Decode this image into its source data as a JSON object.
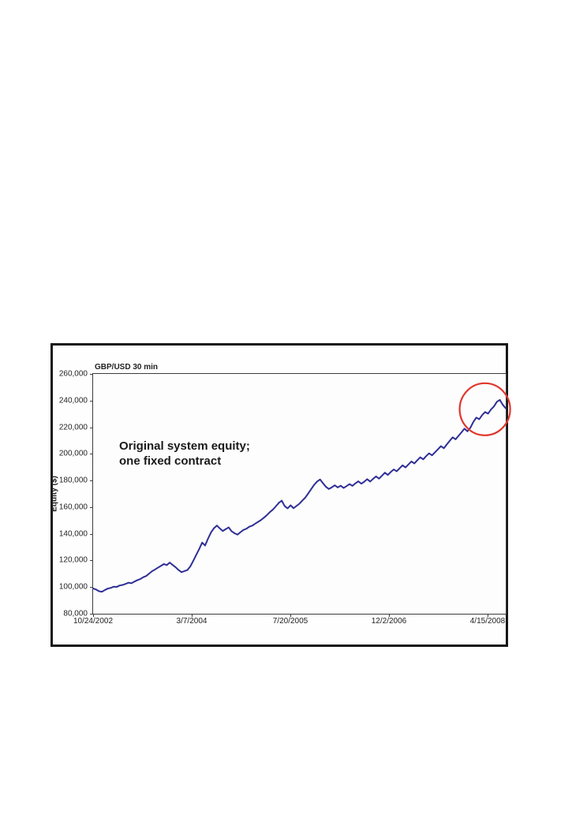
{
  "page": {
    "background": "#ffffff"
  },
  "chart_data": {
    "type": "line",
    "title": "GBP/USD 30 min",
    "xlabel": "",
    "ylabel": "Equity ($)",
    "ylim": [
      80000,
      260000
    ],
    "y_tick_step": 20000,
    "grid": false,
    "legend_position": "none",
    "y_tick_labels": [
      "260,000",
      "240,000",
      "220,000",
      "200,000",
      "180,000",
      "160,000",
      "140,000",
      "120,000",
      "100,000",
      "80,000"
    ],
    "x_tick_labels": [
      "10/24/2002",
      "3/7/2004",
      "7/20/2005",
      "12/2/2006",
      "4/15/2008"
    ],
    "annotation": {
      "line1": "Original system equity;",
      "line2": "one fixed contract"
    },
    "series": [
      {
        "name": "Original system equity, one fixed contract",
        "color": "#2e2e96",
        "values": [
          99000,
          98200,
          96900,
          96500,
          97800,
          98900,
          99400,
          100300,
          100100,
          101200,
          101600,
          102400,
          103300,
          102900,
          104100,
          105200,
          106000,
          107400,
          108300,
          110100,
          111900,
          113200,
          114600,
          115900,
          117300,
          116500,
          118400,
          116600,
          114900,
          112800,
          111200,
          112000,
          112800,
          115600,
          119800,
          124200,
          128600,
          133400,
          131200,
          136400,
          141000,
          144200,
          146200,
          144000,
          142100,
          143500,
          144800,
          141900,
          140400,
          139400,
          141200,
          142900,
          143800,
          145300,
          146100,
          147600,
          149000,
          150400,
          152200,
          154100,
          156300,
          158200,
          160600,
          163200,
          164900,
          160800,
          159100,
          161400,
          159200,
          160900,
          162600,
          165000,
          167200,
          170300,
          173600,
          176800,
          179200,
          180800,
          177900,
          175300,
          173600,
          174900,
          176400,
          174800,
          176100,
          174400,
          175800,
          177300,
          176000,
          177900,
          179400,
          177600,
          179100,
          181000,
          179200,
          181300,
          183100,
          181400,
          183600,
          185900,
          184200,
          186400,
          188300,
          186900,
          189200,
          191400,
          189800,
          192100,
          194300,
          192800,
          195200,
          197400,
          195900,
          198300,
          200400,
          198900,
          201200,
          203400,
          205800,
          204200,
          207100,
          209800,
          212400,
          210900,
          213600,
          216200,
          218900,
          216900,
          219600,
          223900,
          227200,
          226000,
          229100,
          231400,
          230200,
          233300,
          235600,
          239100,
          240500,
          236800,
          234200
        ]
      }
    ],
    "highlight_circle": {
      "center_x_fraction": 0.9495,
      "center_value": 233500,
      "radius_x_px": 32,
      "radius_y_px": 33,
      "color": "#e0372c"
    }
  },
  "colors": {
    "line": "#2e2e96",
    "highlight": "#e0372c",
    "axis": "#3c3c3c",
    "text": "#1b1b1b",
    "box_border": "#161616"
  }
}
